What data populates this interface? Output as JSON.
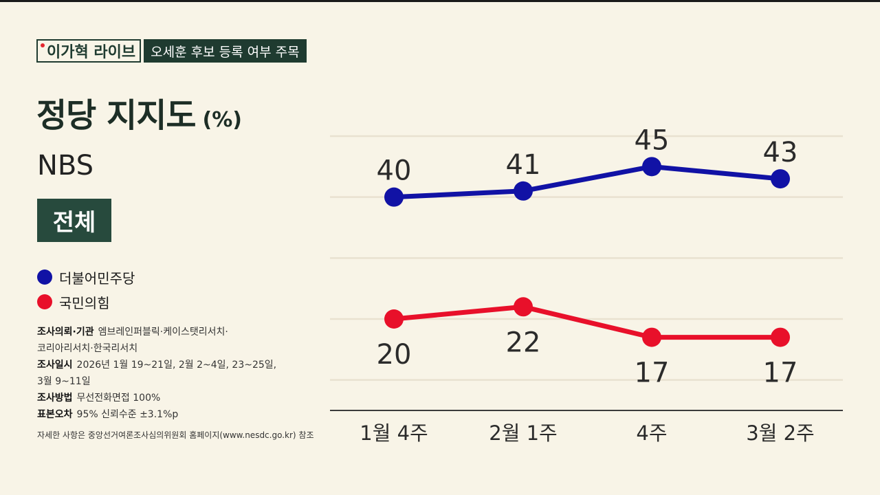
{
  "header": {
    "logo": "이가혁 라이브",
    "subtitle": "오세훈 후보 등록 여부 주목"
  },
  "title": "정당 지지도",
  "unit": "(%)",
  "source": "NBS",
  "badge": "전체",
  "legend": [
    {
      "label": "더불어민주당",
      "color": "#1112a5"
    },
    {
      "label": "국민의힘",
      "color": "#e8102a"
    }
  ],
  "notes": {
    "line1_key": "조사의뢰·기관",
    "line1_val": "엠브레인퍼블릭·케이스탯리서치·",
    "line1_cont": "코리아리서치·한국리서치",
    "line2_key": "조사일시",
    "line2_val": "2026년 1월 19~21일, 2월 2~4일, 23~25일,",
    "line2_cont": "3월 9~11일",
    "line3_key": "조사방법",
    "line3_val": "무선전화면접 100%",
    "line4_key": "표본오차",
    "line4_val": "95% 신뢰수준 ±3.1%p",
    "footnote": "자세한 사항은 중앙선거여론조사심의위원회 홈페이지(www.nesdc.go.kr) 참조"
  },
  "chart_data": {
    "type": "line",
    "categories": [
      "1월 4주",
      "2월 1주",
      "4주",
      "3월 2주"
    ],
    "series": [
      {
        "name": "더불어민주당",
        "values": [
          40,
          41,
          45,
          43
        ],
        "color": "#1112a5"
      },
      {
        "name": "국민의힘",
        "values": [
          20,
          22,
          17,
          17
        ],
        "color": "#e8102a"
      }
    ],
    "ylim": [
      5,
      50
    ],
    "grid": true,
    "legend": "left"
  }
}
